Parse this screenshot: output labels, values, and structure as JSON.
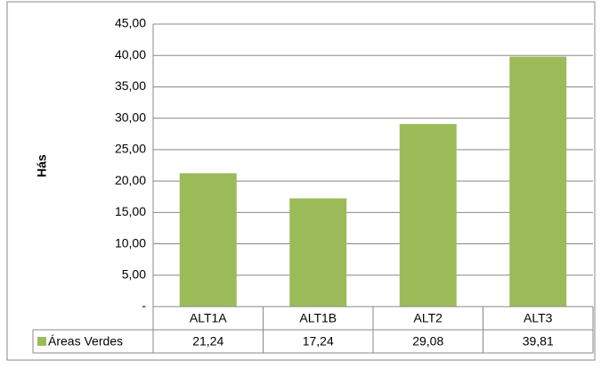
{
  "chart_data": {
    "type": "bar",
    "y_label": "Hás",
    "categories": [
      "ALT1A",
      "ALT1B",
      "ALT2",
      "ALT3"
    ],
    "series": [
      {
        "name": "Áreas Verdes",
        "color": "#9bbb59",
        "values": [
          21.24,
          17.24,
          29.08,
          39.81
        ],
        "value_labels": [
          "21,24",
          "17,24",
          "29,08",
          "39,81"
        ]
      }
    ],
    "ylim": [
      0,
      45
    ],
    "yticks": [
      {
        "value": 0,
        "label": "-"
      },
      {
        "value": 5,
        "label": "5,00"
      },
      {
        "value": 10,
        "label": "10,00"
      },
      {
        "value": 15,
        "label": "15,00"
      },
      {
        "value": 20,
        "label": "20,00"
      },
      {
        "value": 25,
        "label": "25,00"
      },
      {
        "value": 30,
        "label": "30,00"
      },
      {
        "value": 35,
        "label": "35,00"
      },
      {
        "value": 40,
        "label": "40,00"
      },
      {
        "value": 45,
        "label": "45,00"
      }
    ],
    "grid": true,
    "data_table": true
  }
}
